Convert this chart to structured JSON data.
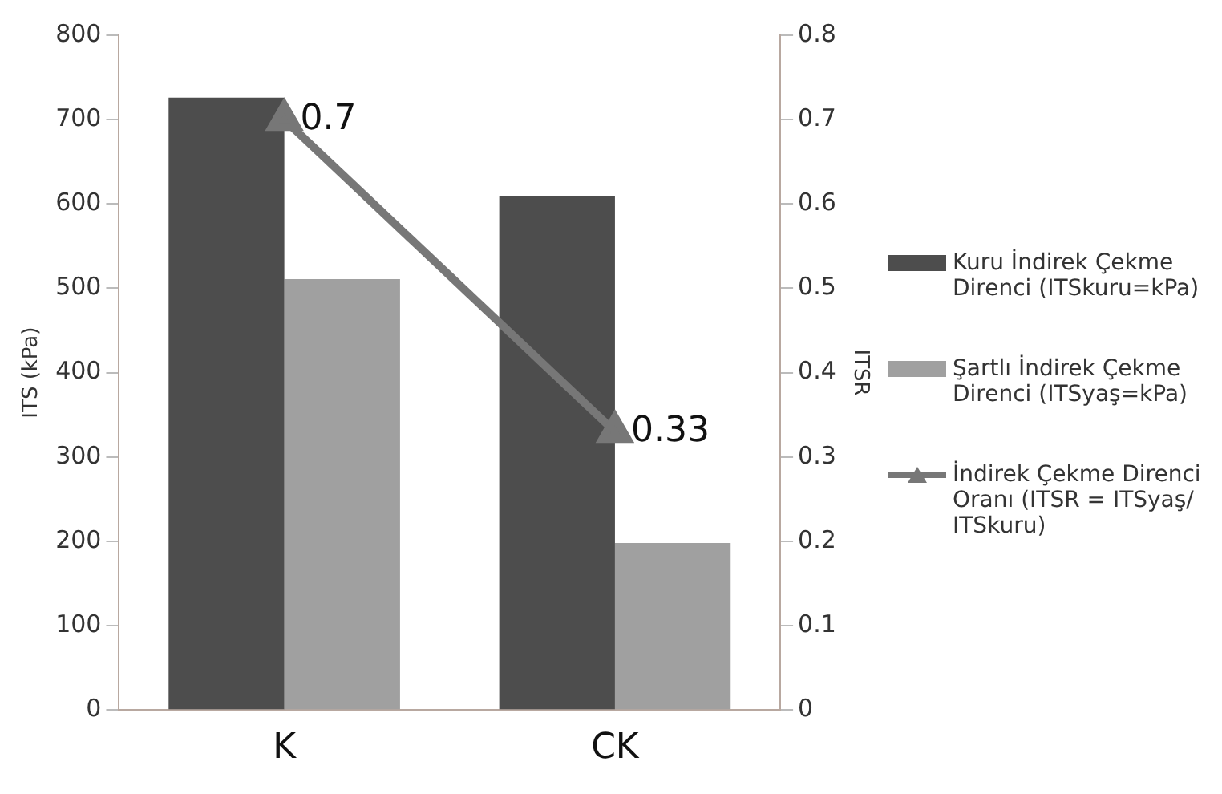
{
  "chart_data": {
    "type": "bar",
    "categories": [
      "K",
      "CK"
    ],
    "ylabel": "ITS (kPa)",
    "y2label": "ITSR",
    "series": [
      {
        "name": "Kuru İndirek Çekme Direnci (ITSkuru=kPa)",
        "color": "#4d4d4d",
        "values": [
          726,
          609
        ]
      },
      {
        "name": "Şartlı İndirek Çekme Direnci (ITSyaş=kPa)",
        "color": "#a0a0a0",
        "values": [
          511,
          198
        ]
      },
      {
        "name": "İndirek Çekme Direnci Oranı (ITSR = ITSyaş/ ITSkuru)",
        "type": "line",
        "axis": "y2",
        "color": "#777777",
        "marker": "triangle",
        "values": [
          0.7,
          0.33
        ],
        "value_labels": [
          "0.7",
          "0.33"
        ]
      }
    ],
    "ylim": [
      0,
      800
    ],
    "yticks": [
      0,
      100,
      200,
      300,
      400,
      500,
      600,
      700,
      800
    ],
    "y2lim": [
      0,
      0.8
    ],
    "y2ticks": [
      0,
      0.1,
      0.2,
      0.3,
      0.4,
      0.5,
      0.6,
      0.7,
      0.8
    ],
    "grid": false,
    "legend": "right"
  }
}
